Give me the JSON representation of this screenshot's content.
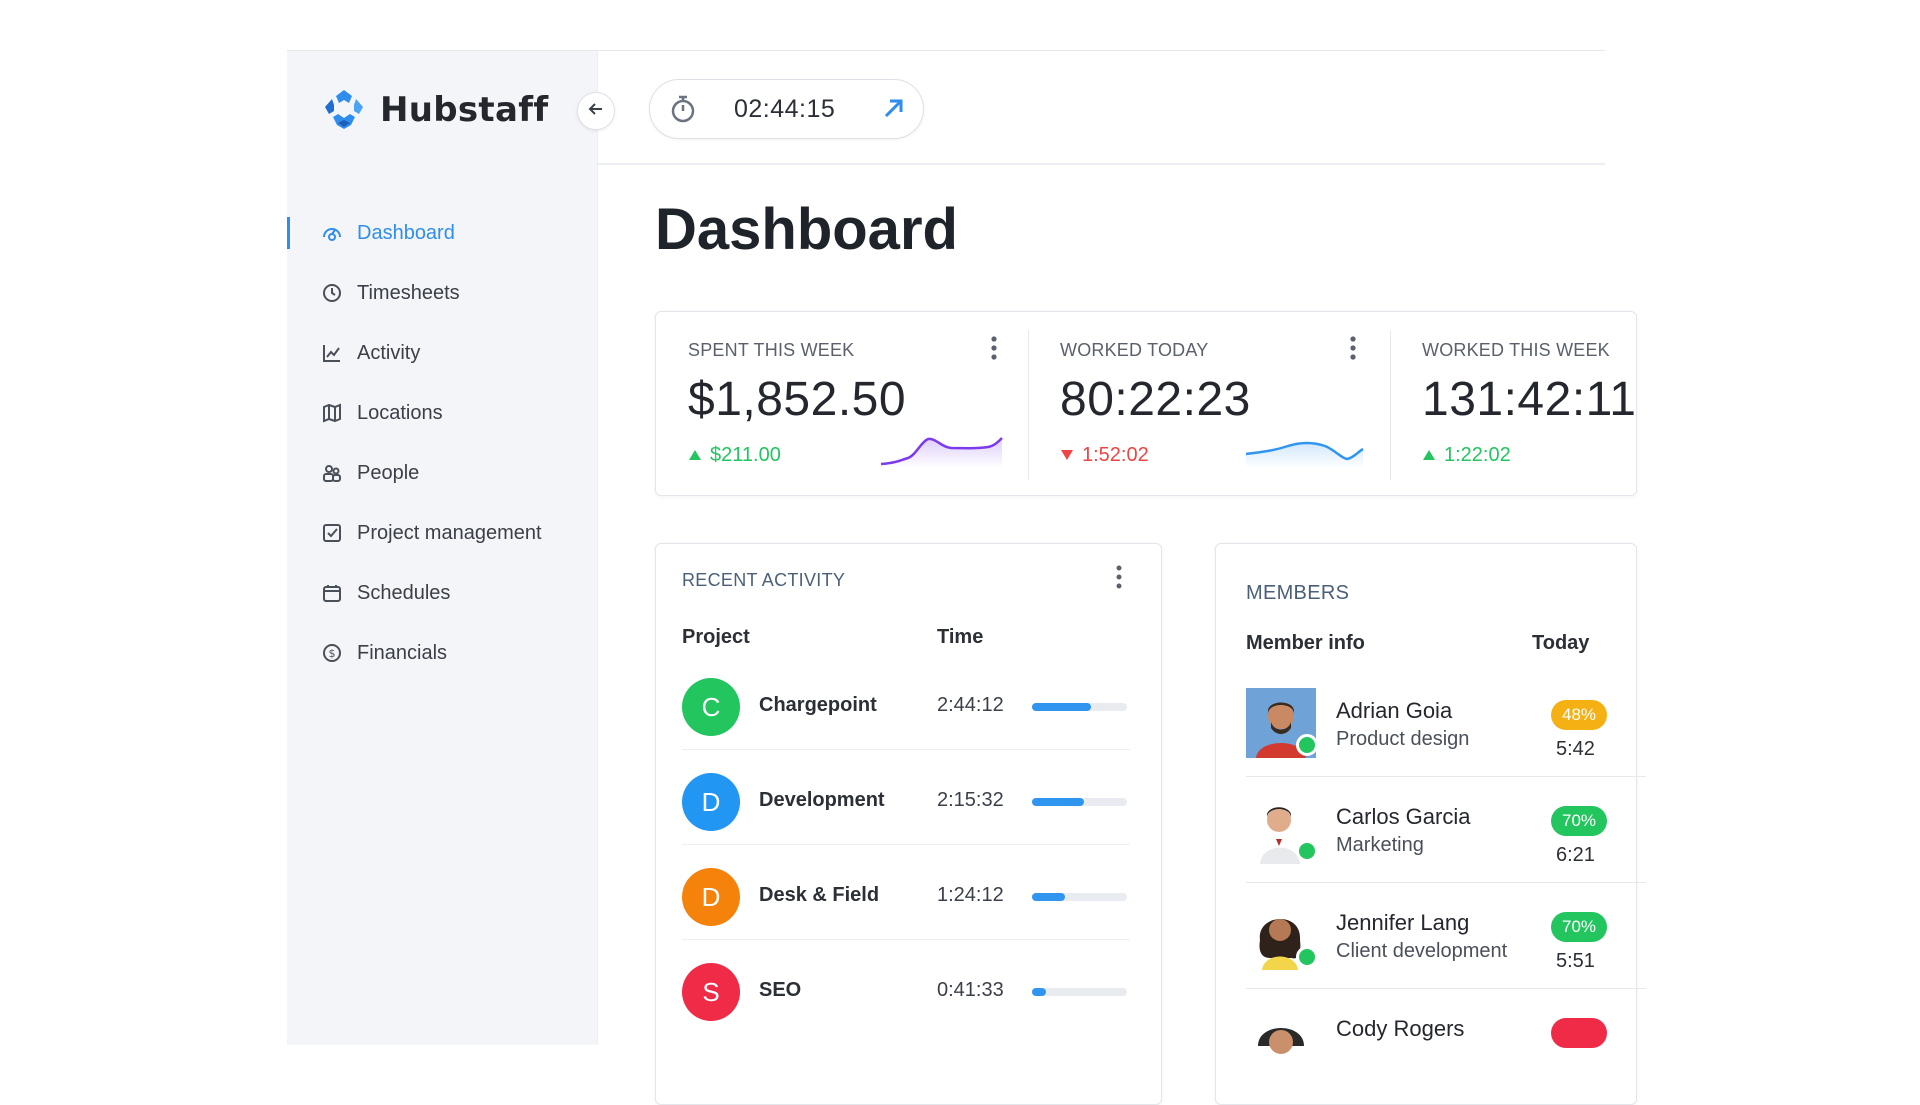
{
  "app": {
    "brand": "Hubstaff",
    "accent_color": "#2f8ded"
  },
  "sidebar": {
    "items": [
      {
        "label": "Dashboard",
        "icon": "dashboard-gauge-icon",
        "active": true
      },
      {
        "label": "Timesheets",
        "icon": "clock-icon",
        "active": false
      },
      {
        "label": "Activity",
        "icon": "chart-line-icon",
        "active": false
      },
      {
        "label": "Locations",
        "icon": "map-icon",
        "active": false
      },
      {
        "label": "People",
        "icon": "people-icon",
        "active": false
      },
      {
        "label": "Project management",
        "icon": "checkbox-icon",
        "active": false
      },
      {
        "label": "Schedules",
        "icon": "calendar-icon",
        "active": false
      },
      {
        "label": "Financials",
        "icon": "dollar-circle-icon",
        "active": false
      }
    ]
  },
  "timer": {
    "value": "02:44:15"
  },
  "page": {
    "title": "Dashboard"
  },
  "stats": [
    {
      "label": "SPENT THIS WEEK",
      "value": "$1,852.50",
      "delta": "$211.00",
      "trend": "up",
      "trend_color": "#22c55e",
      "spark_color": "#7c3aed"
    },
    {
      "label": "WORKED TODAY",
      "value": "80:22:23",
      "delta": "1:52:02",
      "trend": "down",
      "trend_color": "#ef4444",
      "spark_color": "#2f95ef"
    },
    {
      "label": "WORKED THIS WEEK",
      "value": "131:42:11",
      "delta": "1:22:02",
      "trend": "up",
      "trend_color": "#22c55e"
    }
  ],
  "recent_activity": {
    "title": "RECENT ACTIVITY",
    "columns": {
      "project": "Project",
      "time": "Time"
    },
    "rows": [
      {
        "initial": "C",
        "name": "Chargepoint",
        "time": "2:44:12",
        "color": "#22c55e",
        "progress": 0.62
      },
      {
        "initial": "D",
        "name": "Development",
        "time": "2:15:32",
        "color": "#2196f3",
        "progress": 0.55
      },
      {
        "initial": "D",
        "name": "Desk & Field",
        "time": "1:24:12",
        "color": "#f5820b",
        "progress": 0.35
      },
      {
        "initial": "S",
        "name": "SEO",
        "time": "0:41:33",
        "color": "#ef2b47",
        "progress": 0.15
      }
    ]
  },
  "members": {
    "title": "MEMBERS",
    "columns": {
      "info": "Member info",
      "today": "Today"
    },
    "rows": [
      {
        "name": "Adrian Goia",
        "role": "Product design",
        "badge": "48%",
        "badge_color": "#f5b014",
        "time": "5:42"
      },
      {
        "name": "Carlos Garcia",
        "role": "Marketing",
        "badge": "70%",
        "badge_color": "#22c55e",
        "time": "6:21"
      },
      {
        "name": "Jennifer Lang",
        "role": "Client development",
        "badge": "70%",
        "badge_color": "#22c55e",
        "time": "5:51"
      },
      {
        "name": "Cody Rogers",
        "role": "",
        "badge": "",
        "badge_color": "#ef2b47",
        "time": ""
      }
    ]
  }
}
